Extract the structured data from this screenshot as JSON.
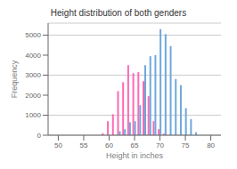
{
  "chart_data": {
    "type": "bar",
    "title": "Height distribution of both genders",
    "xlabel": "Height in inches",
    "ylabel": "Frequency",
    "series": [
      {
        "color": "#ff69b4",
        "x": [
          59,
          60,
          61,
          62,
          63,
          64,
          65,
          66,
          67,
          68,
          69,
          70,
          71
        ],
        "values": [
          100,
          700,
          1050,
          2200,
          2650,
          3500,
          3100,
          3150,
          2700,
          1950,
          700,
          300,
          80
        ]
      },
      {
        "color": "#6fa8dc",
        "x": [
          62,
          63,
          64,
          65,
          66,
          67,
          68,
          69,
          70,
          71,
          72,
          73,
          74,
          75,
          76,
          77
        ],
        "values": [
          200,
          300,
          650,
          700,
          1500,
          3500,
          3950,
          4000,
          5300,
          5050,
          4450,
          2800,
          2500,
          1350,
          800,
          150
        ]
      }
    ],
    "xlim": [
      48,
      82
    ],
    "ylim": [
      0,
      5600
    ],
    "xticks": [
      50,
      55,
      60,
      65,
      70,
      75,
      80
    ],
    "yticks": [
      0,
      1000,
      2000,
      3000,
      4000,
      5000
    ],
    "grid": true
  }
}
